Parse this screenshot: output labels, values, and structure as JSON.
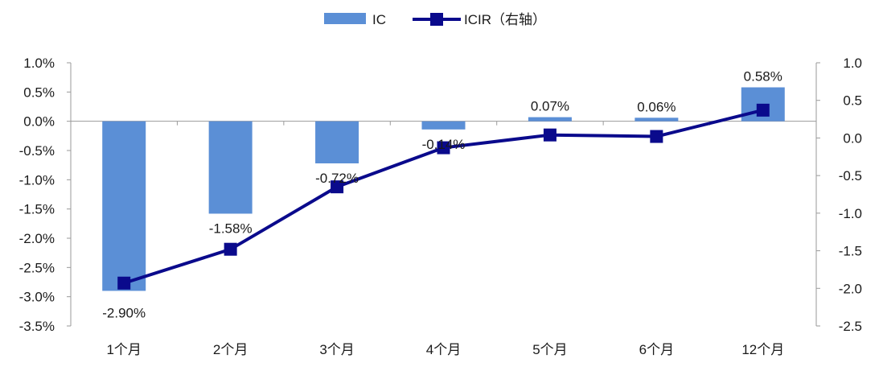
{
  "chart_data": {
    "type": "bar+line",
    "categories": [
      "1个月",
      "2个月",
      "3个月",
      "4个月",
      "5个月",
      "6个月",
      "12个月"
    ],
    "series": [
      {
        "name": "IC",
        "type": "bar",
        "axis": "left",
        "color": "#5b8fd6",
        "values": [
          -2.9,
          -1.58,
          -0.72,
          -0.14,
          0.07,
          0.06,
          0.58
        ],
        "labels": [
          "-2.90%",
          "-1.58%",
          "-0.72%",
          "-0.14%",
          "0.07%",
          "0.06%",
          "0.58%"
        ]
      },
      {
        "name": "ICIR（右轴）",
        "type": "line",
        "axis": "right",
        "color": "#0a0a8c",
        "marker": "square",
        "values": [
          -1.93,
          -1.48,
          -0.65,
          -0.13,
          0.04,
          0.02,
          0.37
        ]
      }
    ],
    "y_left": {
      "range": [
        -3.5,
        1.0
      ],
      "ticks": [
        1.0,
        0.5,
        0.0,
        -0.5,
        -1.0,
        -1.5,
        -2.0,
        -2.5,
        -3.0,
        -3.5
      ],
      "tick_labels": [
        "1.0%",
        "0.5%",
        "0.0%",
        "-0.5%",
        "-1.0%",
        "-1.5%",
        "-2.0%",
        "-2.5%",
        "-3.0%",
        "-3.5%"
      ]
    },
    "y_right": {
      "range": [
        -2.5,
        1.0
      ],
      "ticks": [
        1.0,
        0.5,
        0.0,
        -0.5,
        -1.0,
        -1.5,
        -2.0,
        -2.5
      ],
      "tick_labels": [
        "1.0",
        "0.5",
        "0.0",
        "-0.5",
        "-1.0",
        "-1.5",
        "-2.0",
        "-2.5"
      ]
    },
    "legend_position": "top-center",
    "grid": false
  }
}
